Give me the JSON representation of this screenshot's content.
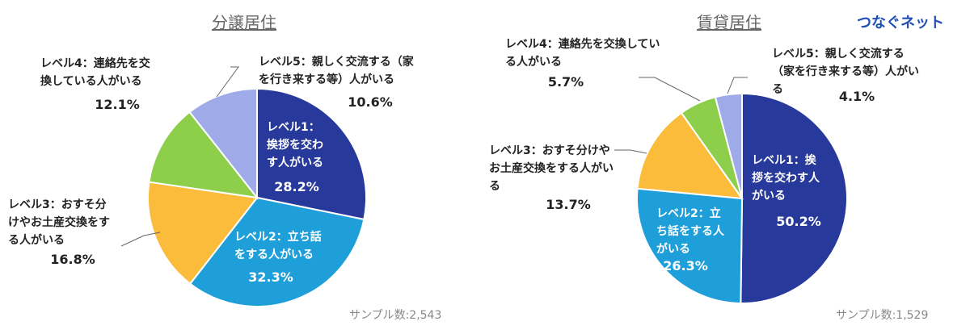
{
  "brand": "つなぐネット",
  "chart_data": [
    {
      "type": "pie",
      "title": "分譲居住",
      "sample_label": "サンプル数:2,543",
      "categories": [
        "レベル1：挨拶を交わす人がいる",
        "レベル2：立ち話をする人がいる",
        "レベル3：おすそ分けやお土産交換をする人がいる",
        "レベル4：連絡先を交換している人がいる",
        "レベル5：親しく交流する（家を行き来する等）人がいる"
      ],
      "values": [
        28.2,
        32.3,
        16.8,
        12.1,
        10.6
      ],
      "value_labels": [
        "28.2%",
        "32.3%",
        "16.8%",
        "12.1%",
        "10.6%"
      ],
      "colors": [
        "#27399a",
        "#1e9fd9",
        "#fbbb3b",
        "#8dce4b",
        "#9fabe8"
      ]
    },
    {
      "type": "pie",
      "title": "賃貸居住",
      "sample_label": "サンプル数:1,529",
      "categories": [
        "レベル1：挨拶を交わす人がいる",
        "レベル2：立ち話をする人がいる",
        "レベル3：おすそ分けやお土産交換をする人がいる",
        "レベル4：連絡先を交換している人がいる",
        "レベル5：親しく交流する（家を行き来する等）人がいる"
      ],
      "values": [
        50.2,
        26.3,
        13.7,
        5.7,
        4.1
      ],
      "value_labels": [
        "50.2%",
        "26.3%",
        "13.7%",
        "5.7%",
        "4.1%"
      ],
      "colors": [
        "#27399a",
        "#1e9fd9",
        "#fbbb3b",
        "#8dce4b",
        "#9fabe8"
      ]
    }
  ]
}
